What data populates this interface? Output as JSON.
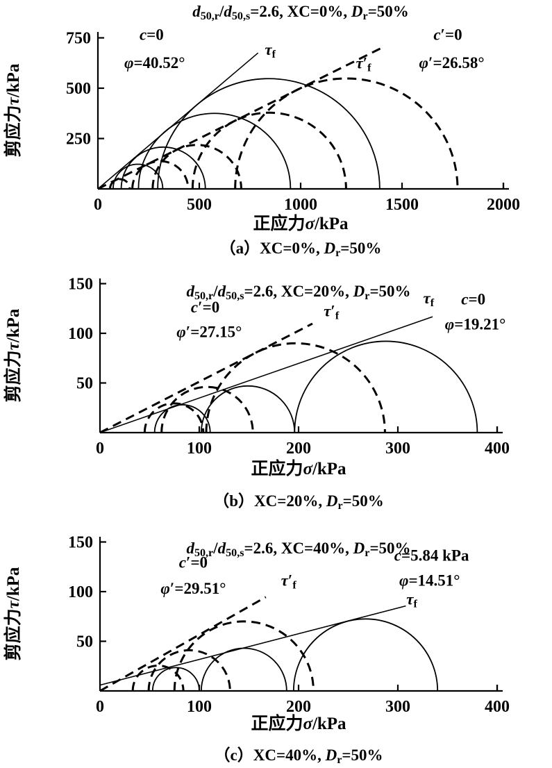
{
  "figure": {
    "background": "#ffffff",
    "ink": "#000000",
    "description": "Mohr circle shear-strength diagrams, three stacked panels"
  },
  "chart_data": [
    {
      "id": "a",
      "type": "mohr_circles",
      "title": "*d*_{50,r}/*d*_{50,s}=2.6, XC=0%, *D*_{r}=50%",
      "caption": "（a）XC=0%, *D*_{r}=50%",
      "xlabel": "正应力*σ*/kPa",
      "ylabel": "剪应力*τ*/kPa",
      "xlim": [
        0,
        2000
      ],
      "ylim": [
        0,
        750
      ],
      "xticks": [
        0,
        500,
        1000,
        1500,
        2000
      ],
      "yticks": [
        250,
        500,
        750
      ],
      "solid_circles": [
        [
          75,
          320
        ],
        [
          115,
          530
        ],
        [
          200,
          950
        ],
        [
          295,
          1390
        ]
      ],
      "dashed_circles": [
        [
          60,
          157
        ],
        [
          170,
          445
        ],
        [
          270,
          707
        ],
        [
          467,
          1224
        ],
        [
          677,
          1774
        ]
      ],
      "envelopes": [
        {
          "style": "solid",
          "cohesion_kpa": 0,
          "friction_deg": 40.52,
          "x_end": 790,
          "label": "*τ*_{f}"
        },
        {
          "style": "dashed",
          "cohesion_kpa": 0,
          "friction_deg": 26.58,
          "x_end": 1410,
          "label": "*τ*′_{f}"
        }
      ],
      "annotations": [
        {
          "text": "*c*=0",
          "x": 265,
          "y": 740
        },
        {
          "text": "*φ*=40.52°",
          "x": 280,
          "y": 600
        },
        {
          "text": "*τ*_{f}",
          "x": 850,
          "y": 665
        },
        {
          "text": "*τ*′_{f}",
          "x": 1310,
          "y": 598
        },
        {
          "text": "*c*′=0",
          "x": 1726,
          "y": 740
        },
        {
          "text": "*φ*′=26.58°",
          "x": 1745,
          "y": 600
        }
      ]
    },
    {
      "id": "b",
      "type": "mohr_circles",
      "title": "*d*_{50,r}/*d*_{50,s}=2.6, XC=20%, *D*_{r}=50%",
      "caption": "（b）XC=20%, *D*_{r}=50%",
      "xlabel": "正应力*σ*/kPa",
      "ylabel": "剪应力*τ*/kPa",
      "xlim": [
        0,
        400
      ],
      "ylim": [
        0,
        150
      ],
      "xticks": [
        0,
        100,
        200,
        300,
        400
      ],
      "yticks": [
        50,
        100,
        150
      ],
      "solid_circles": [
        [
          55,
          111
        ],
        [
          102,
          196
        ],
        [
          196,
          380
        ]
      ],
      "dashed_circles": [
        [
          45,
          104
        ],
        [
          62,
          154
        ],
        [
          107,
          287
        ]
      ],
      "envelopes": [
        {
          "style": "solid",
          "cohesion_kpa": 0,
          "friction_deg": 19.21,
          "x_end": 335,
          "label": "*τ*_{f}"
        },
        {
          "style": "dashed",
          "cohesion_kpa": 0,
          "friction_deg": 27.15,
          "x_end": 214,
          "label": "*τ*′_{f}"
        }
      ],
      "annotations": [
        {
          "text": "*c*′=0",
          "x": 106,
          "y": 121
        },
        {
          "text": "*φ*′=27.15°",
          "x": 110,
          "y": 96
        },
        {
          "text": "*τ*′_{f}",
          "x": 233,
          "y": 117
        },
        {
          "text": "*τ*_{f}",
          "x": 331,
          "y": 130
        },
        {
          "text": "*c*=0",
          "x": 376,
          "y": 129
        },
        {
          "text": "*φ*=19.21°",
          "x": 378,
          "y": 104
        }
      ]
    },
    {
      "id": "c",
      "type": "mohr_circles",
      "title": "*d*_{50,r}/*d*_{50,s}=2.6, XC=40%, *D*_{r}=50%",
      "caption": "（c）XC=40%, *D*_{r}=50%",
      "xlabel": "正应力*σ*/kPa",
      "ylabel": "剪应力*τ*/kPa",
      "xlim": [
        0,
        400
      ],
      "ylim": [
        0,
        150
      ],
      "xticks": [
        0,
        100,
        200,
        300,
        400
      ],
      "yticks": [
        50,
        100,
        150
      ],
      "solid_circles": [
        [
          53,
          100
        ],
        [
          102,
          188
        ],
        [
          195,
          340
        ]
      ],
      "dashed_circles": [
        [
          33,
          84
        ],
        [
          49,
          131
        ],
        [
          75,
          215
        ]
      ],
      "envelopes": [
        {
          "style": "solid",
          "cohesion_kpa": 5.84,
          "friction_deg": 14.51,
          "x_end": 308,
          "label": "*τ*_{f}"
        },
        {
          "style": "dashed",
          "cohesion_kpa": 0,
          "friction_deg": 29.51,
          "x_end": 167,
          "label": "*τ*′_{f}"
        }
      ],
      "annotations": [
        {
          "text": "*c*′=0",
          "x": 94,
          "y": 124
        },
        {
          "text": "*φ*′=29.51°",
          "x": 94,
          "y": 98
        },
        {
          "text": "*τ*′_{f}",
          "x": 190,
          "y": 106
        },
        {
          "text": "*c*=5.84 kPa",
          "x": 334,
          "y": 131
        },
        {
          "text": "*φ*=14.51°",
          "x": 332,
          "y": 106
        },
        {
          "text": "*τ*_{f}",
          "x": 314,
          "y": 87
        }
      ]
    }
  ]
}
